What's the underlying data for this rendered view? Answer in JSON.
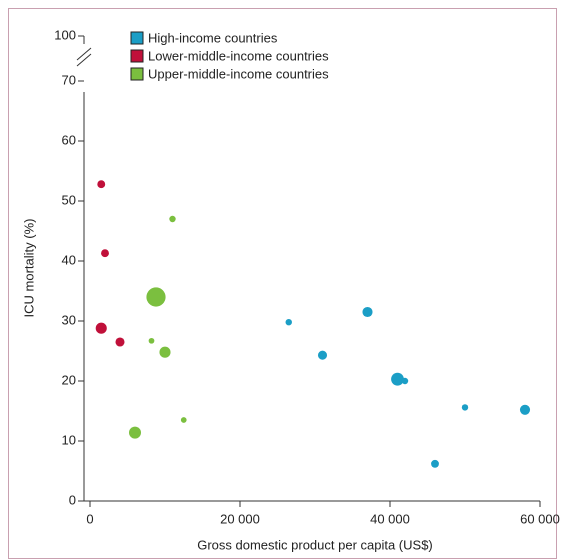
{
  "chart_data": {
    "type": "scatter",
    "x_label": "Gross domestic product per capita (US$)",
    "y_label": "ICU mortality (%)",
    "xlim": [
      0,
      60000
    ],
    "xticks": [
      0,
      {
        "value": 20000,
        "label": "20 000"
      },
      {
        "value": 40000,
        "label": "40 000"
      },
      {
        "value": 60000,
        "label": "60 000"
      }
    ],
    "ylim": [
      0,
      100
    ],
    "yticks": [
      0,
      10,
      20,
      30,
      40,
      50,
      60,
      70,
      100
    ],
    "axis_break": [
      70,
      100
    ],
    "legend": "top-left",
    "series": [
      {
        "name": "High-income countries",
        "color": "#1b9ec6",
        "x": [
          26500,
          31000,
          37000,
          41000,
          42000,
          46000,
          50000,
          58000
        ],
        "values": [
          29.8,
          24.3,
          31.5,
          20.3,
          20,
          6.2,
          15.6,
          15.2
        ],
        "sizes": [
          1,
          2,
          2.5,
          4,
          1,
          1.5,
          1,
          2.5
        ]
      },
      {
        "name": "Lower-middle-income countries",
        "color": "#c0103a",
        "x": [
          1500,
          2000,
          1500,
          4000
        ],
        "values": [
          52.8,
          41.3,
          28.8,
          26.5
        ],
        "sizes": [
          1.5,
          1.5,
          3,
          2
        ]
      },
      {
        "name": "Upper-middle-income countries",
        "color": "#7bbf3f",
        "x": [
          11000,
          8800,
          8200,
          10000,
          12500,
          6000
        ],
        "values": [
          47,
          34,
          26.7,
          24.8,
          13.5,
          11.4
        ],
        "sizes": [
          1,
          9,
          0.8,
          3,
          0.8,
          3.5
        ]
      }
    ]
  }
}
